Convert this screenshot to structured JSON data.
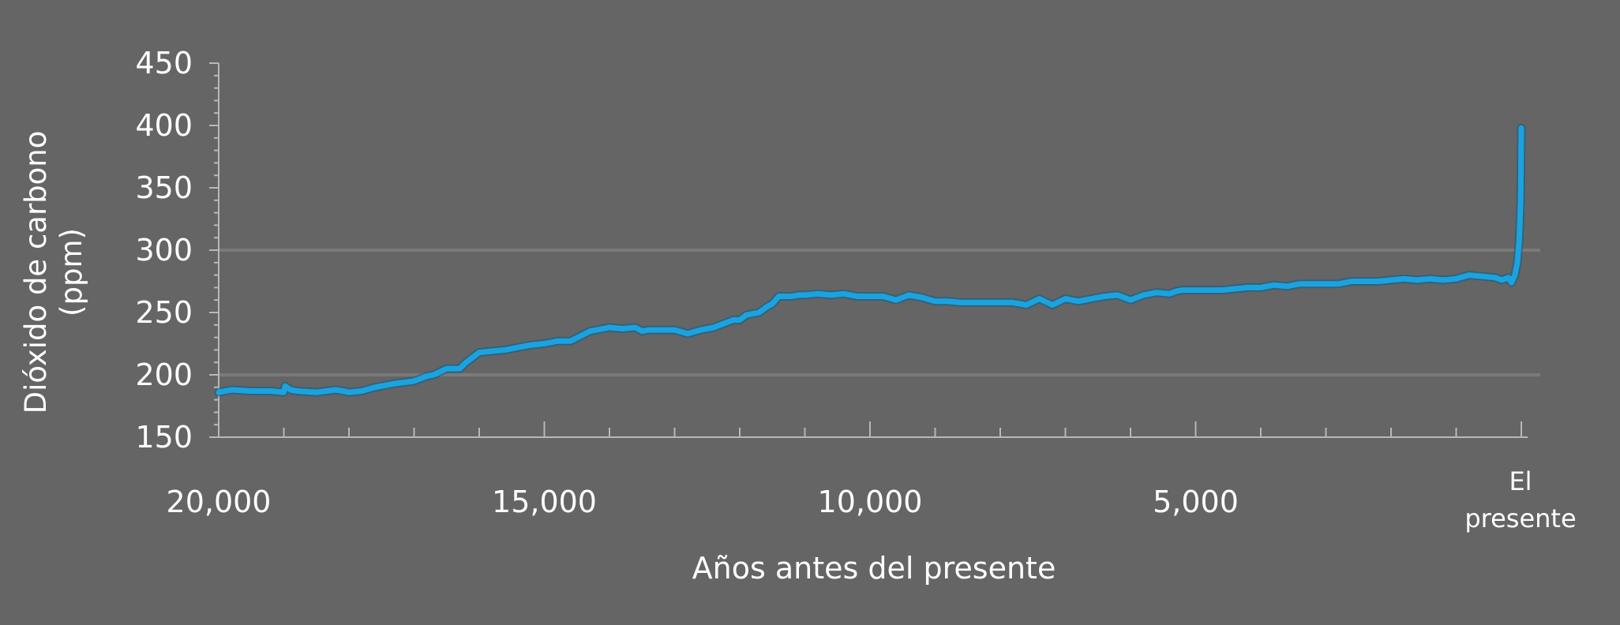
{
  "chart_data": {
    "type": "line",
    "title": "",
    "xlabel": "Años antes del presente",
    "ylabel_line1": "Dióxido de carbono",
    "ylabel_line2": "(ppm)",
    "xlim": [
      20000,
      0
    ],
    "ylim": [
      150,
      450
    ],
    "x_reversed": true,
    "y_ticks": [
      150,
      200,
      250,
      300,
      350,
      400,
      450
    ],
    "x_ticks": [
      {
        "value": 20000,
        "label": "20,000"
      },
      {
        "value": 15000,
        "label": "15,000"
      },
      {
        "value": 10000,
        "label": "10,000"
      },
      {
        "value": 5000,
        "label": "5,000"
      }
    ],
    "x_end_label_line1": "El",
    "x_end_label_line2": "presente",
    "reference_lines": [
      200,
      300
    ],
    "colors": {
      "line": "#1aa3e0",
      "background": "#656565",
      "axis": "#b8b8b8",
      "reference": "#7a7a7a"
    },
    "series": [
      {
        "x": [
          20000,
          19800,
          19500,
          19200,
          19000,
          18980,
          18900,
          18800,
          18500,
          18200,
          18000,
          17800,
          17600,
          17300,
          17000,
          16800,
          16700,
          16500,
          16300,
          16200,
          16000,
          15800,
          15600,
          15400,
          15200,
          15000,
          14800,
          14600,
          14300,
          14000,
          13800,
          13600,
          13500,
          13400,
          13200,
          13000,
          12800,
          12600,
          12400,
          12300,
          12100,
          12000,
          11900,
          11700,
          11600,
          11500,
          11400,
          11300,
          11200,
          11100,
          11000,
          10800,
          10600,
          10400,
          10200,
          10000,
          9800,
          9600,
          9400,
          9200,
          9000,
          8800,
          8600,
          8400,
          8200,
          8000,
          7800,
          7600,
          7400,
          7200,
          7000,
          6800,
          6600,
          6400,
          6200,
          6000,
          5800,
          5600,
          5400,
          5300,
          5200,
          5000,
          4800,
          4600,
          4400,
          4200,
          4000,
          3800,
          3600,
          3400,
          3200,
          3000,
          2800,
          2600,
          2400,
          2200,
          2000,
          1800,
          1600,
          1400,
          1200,
          1000,
          800,
          600,
          400,
          300,
          200,
          150,
          100,
          60,
          30,
          10,
          0
        ],
        "y": [
          186,
          188,
          187,
          187,
          186,
          191,
          188,
          187,
          186,
          188,
          186,
          187,
          190,
          193,
          195,
          199,
          200,
          205,
          205,
          210,
          218,
          219,
          220,
          222,
          224,
          225,
          227,
          227,
          235,
          238,
          237,
          238,
          235,
          236,
          236,
          236,
          233,
          236,
          238,
          240,
          244,
          244,
          248,
          250,
          254,
          257,
          263,
          263,
          263,
          264,
          264,
          265,
          264,
          265,
          263,
          263,
          263,
          260,
          264,
          262,
          259,
          259,
          258,
          258,
          258,
          258,
          258,
          256,
          261,
          256,
          261,
          259,
          261,
          263,
          264,
          260,
          264,
          266,
          265,
          267,
          268,
          268,
          268,
          268,
          269,
          270,
          270,
          272,
          271,
          273,
          273,
          273,
          273,
          275,
          275,
          275,
          276,
          277,
          276,
          277,
          276,
          277,
          280,
          279,
          278,
          276,
          278,
          274,
          280,
          290,
          310,
          340,
          398
        ]
      }
    ]
  }
}
